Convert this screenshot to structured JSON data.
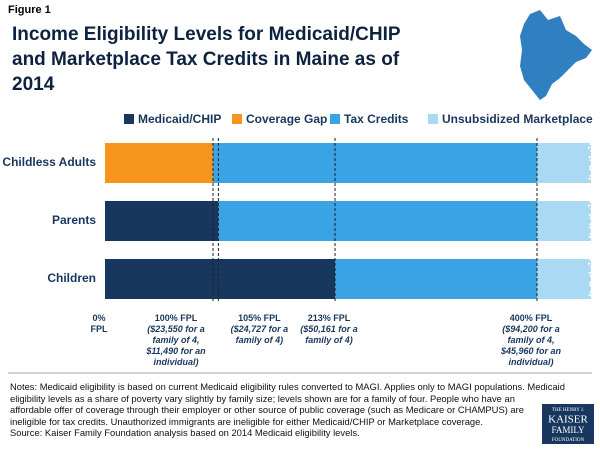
{
  "chart_data": {
    "type": "stacked_barh",
    "figure_label": "Figure 1",
    "title": "Income Eligibility Levels for Medicaid/CHIP and Marketplace Tax Credits in Maine as of 2014",
    "categories": [
      "Childless Adults",
      "Parents",
      "Children"
    ],
    "series": [
      {
        "name": "Medicaid/CHIP",
        "color": "#17375e",
        "values": [
          0,
          105,
          213
        ]
      },
      {
        "name": "Coverage Gap",
        "color": "#f7941d",
        "values": [
          100,
          0,
          0
        ]
      },
      {
        "name": "Tax Credits",
        "color": "#3aa3e3",
        "values": [
          300,
          295,
          187
        ]
      },
      {
        "name": "Unsubsidized Marketplace",
        "color": "#a9d9f3",
        "values": [
          50,
          50,
          50
        ]
      }
    ],
    "xlim": [
      0,
      450
    ],
    "xticks": [
      {
        "value": 0,
        "label": "0% FPL"
      },
      {
        "value": 100,
        "label": "100% FPL"
      },
      {
        "value": 105,
        "label": "105% FPL"
      },
      {
        "value": 213,
        "label": "213% FPL"
      },
      {
        "value": 400,
        "label": "400% FPL"
      }
    ],
    "xtick_notes": [
      null,
      "($23,550 for a family of 4, $11,490 for an individual)",
      "($24,727 for a family of 4)",
      "($50,161 for a family of 4)",
      "($94,200 for a family of 4, $45,960 for an individual)"
    ],
    "legend_position": "top",
    "notes": "Notes: Medicaid eligibility is based on current Medicaid eligibility rules converted to MAGI. Applies only to MAGI populations. Medicaid eligibility levels as a share of poverty vary slightly by family size; levels shown are for a family of four. People who have an affordable offer of coverage through their employer or other source of public coverage (such as Medicare or CHAMPUS) are ineligible for tax credits. Unauthorized immigrants are ineligible for either Medicaid/CHIP or Marketplace coverage.",
    "source": "Source: Kaiser Family Foundation analysis based on 2014 Medicaid eligibility levels.",
    "logo": [
      "THE HENRY J.",
      "KAISER",
      "FAMILY",
      "FOUNDATION"
    ]
  }
}
